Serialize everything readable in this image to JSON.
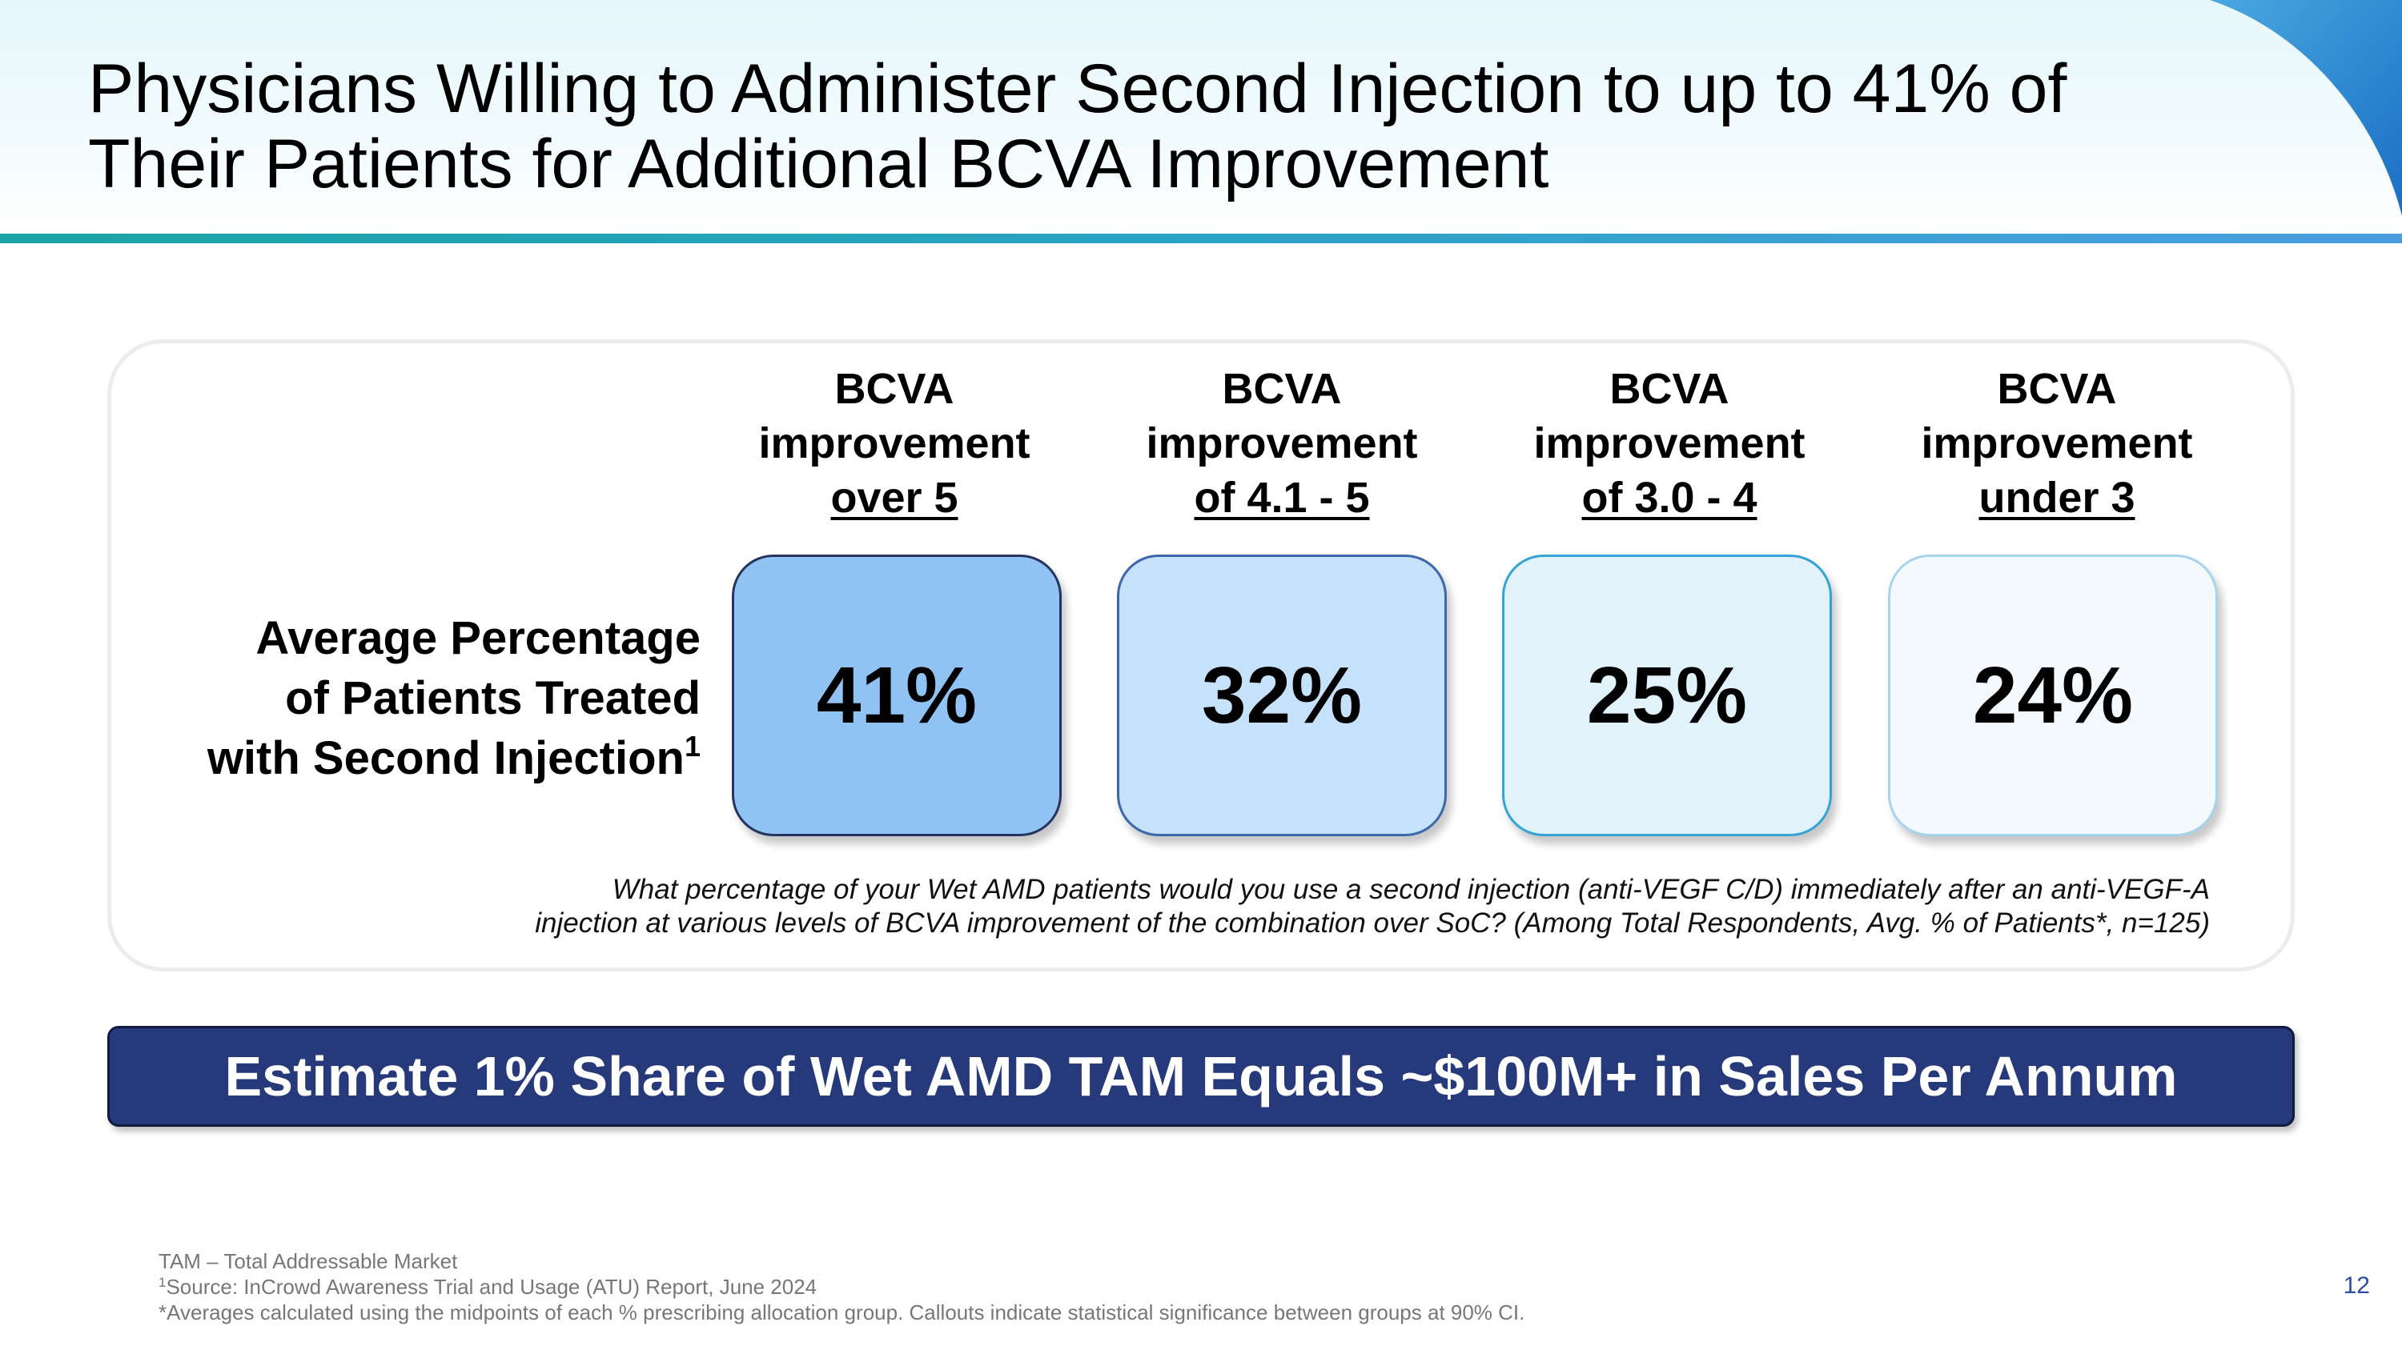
{
  "slide": {
    "title_lines": [
      "Physicians Willing to Administer Second Injection to up to 41% of",
      "Their Patients for Additional BCVA Improvement"
    ],
    "row_label": {
      "lines": [
        "Average Percentage",
        "of Patients Treated",
        "with Second Injection"
      ],
      "superscript": "1"
    },
    "columns": [
      {
        "line1": "BCVA",
        "line2": "improvement",
        "line3": "over 5",
        "value": "41%"
      },
      {
        "line1": "BCVA",
        "line2": "improvement",
        "line3": "of 4.1 - 5",
        "value": "32%"
      },
      {
        "line1": "BCVA",
        "line2": "improvement",
        "line3": "of 3.0 - 4",
        "value": "25%"
      },
      {
        "line1": "BCVA",
        "line2": "improvement",
        "line3": "under 3",
        "value": "24%"
      }
    ],
    "question_lines": [
      "What percentage of your Wet AMD patients would you use a second injection (anti-VEGF C/D) immediately after an anti-VEGF-A",
      "injection at various levels of BCVA improvement of the combination over SoC? (Among Total Respondents, Avg. % of Patients*, n=125)"
    ],
    "banner": "Estimate 1% Share of Wet AMD TAM Equals ~$100M+ in Sales Per Annum",
    "footnotes": {
      "line1": "TAM – Total Addressable Market",
      "line2_sup": "1",
      "line2": "Source: InCrowd Awareness Trial and Usage (ATU) Report, June 2024",
      "line3": "*Averages calculated using the midpoints of each % prescribing allocation group. Callouts indicate statistical significance between groups at 90% CI."
    },
    "page_number": "12"
  },
  "colors": {
    "box_fills": [
      "#90c3f3",
      "#c6e1fa",
      "#e2f2fb",
      "#f4f9fe"
    ],
    "box_borders": [
      "#26355f",
      "#3d67ad",
      "#34a4d6",
      "#a6d4ec"
    ],
    "banner_fill": "#263a7b",
    "rule_start": "#1aa4a6",
    "rule_end": "#4a9ee0"
  }
}
